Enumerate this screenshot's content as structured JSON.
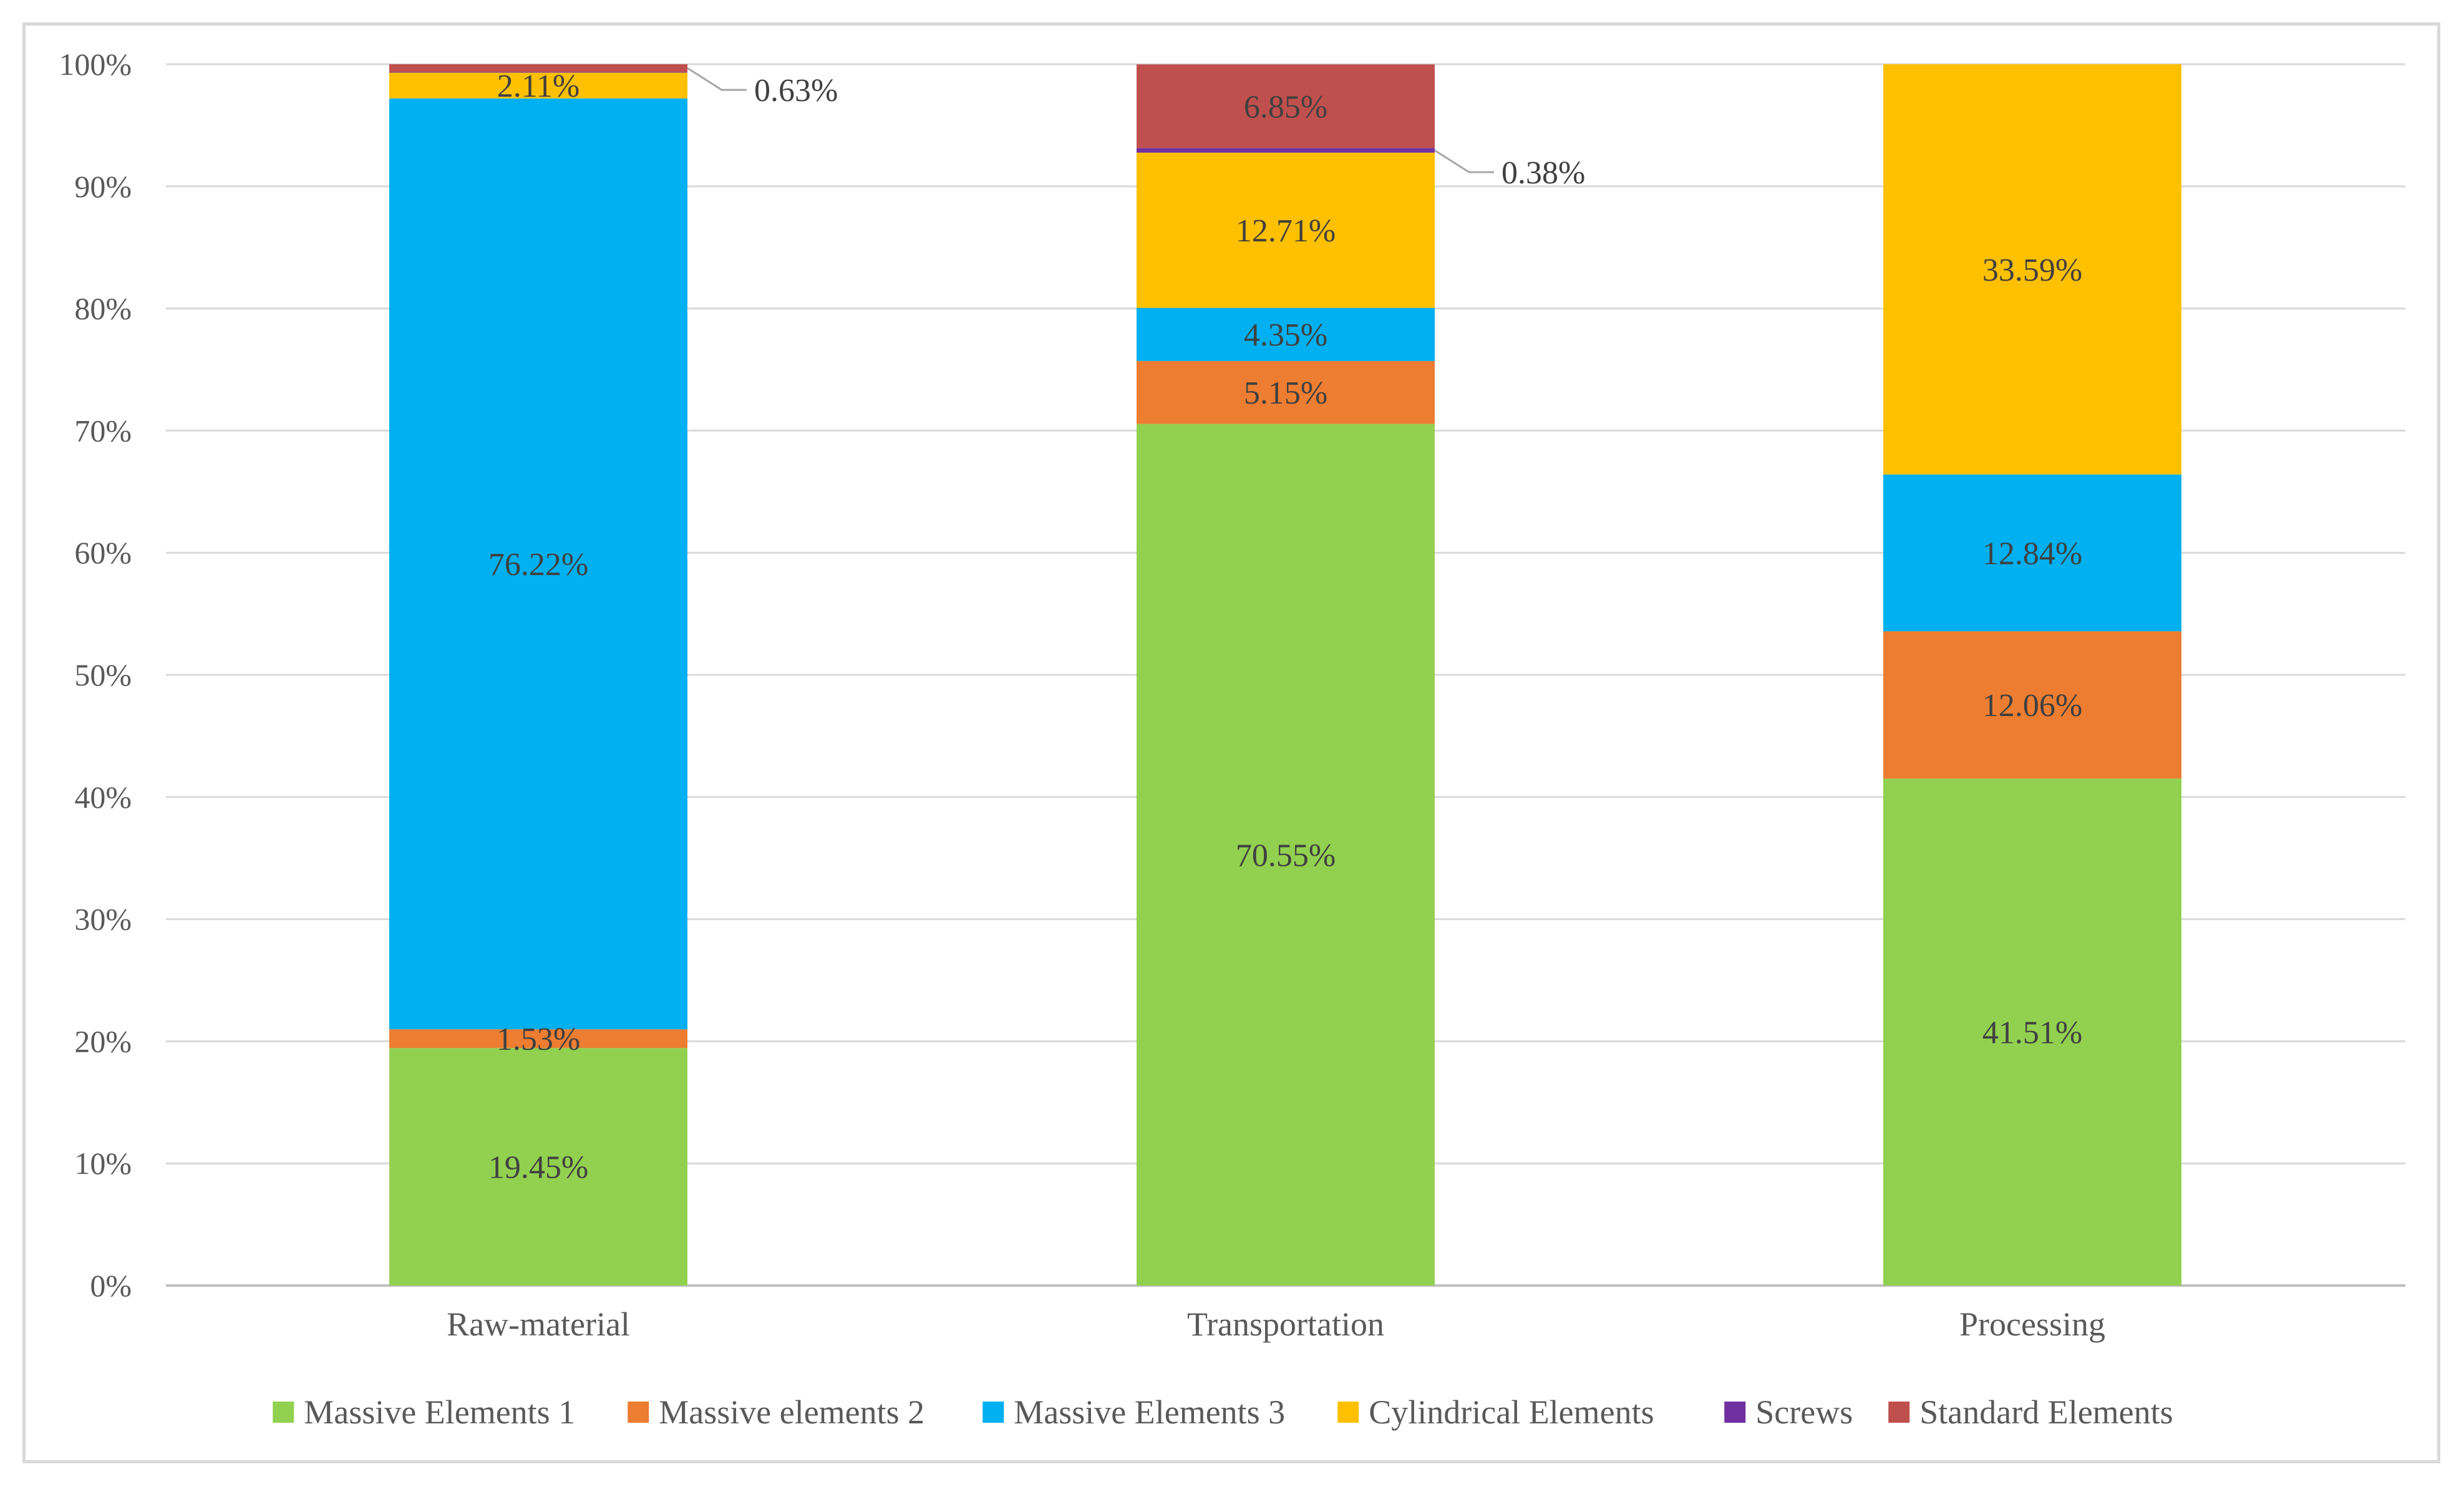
{
  "chart_data": {
    "type": "bar",
    "stacked": true,
    "percent": true,
    "title": "",
    "xlabel": "",
    "ylabel": "",
    "ylim": [
      0,
      100
    ],
    "yticks": [
      "0%",
      "10%",
      "20%",
      "30%",
      "40%",
      "50%",
      "60%",
      "70%",
      "80%",
      "90%",
      "100%"
    ],
    "categories": [
      "Raw-material",
      "Transportation",
      "Processing"
    ],
    "legend_position": "bottom",
    "series": [
      {
        "name": "Massive Elements 1",
        "color": "#92D050",
        "values": [
          19.45,
          70.55,
          41.51
        ],
        "labels": [
          "19.45%",
          "70.55%",
          "41.51%"
        ]
      },
      {
        "name": "Massive elements 2",
        "color": "#ED7D31",
        "values": [
          1.53,
          5.15,
          12.06
        ],
        "labels": [
          "1.53%",
          "5.15%",
          "12.06%"
        ]
      },
      {
        "name": "Massive Elements 3",
        "color": "#00B0F0",
        "values": [
          76.22,
          4.35,
          12.84
        ],
        "labels": [
          "76.22%",
          "4.35%",
          "12.84%"
        ]
      },
      {
        "name": "Cylindrical Elements",
        "color": "#FFC000",
        "values": [
          2.11,
          12.71,
          33.59
        ],
        "labels": [
          "2.11%",
          "12.71%",
          "33.59%"
        ]
      },
      {
        "name": "Screws",
        "color": "#7030A0",
        "values": [
          0.06,
          0.38,
          0
        ],
        "labels": [
          "",
          "0.38%",
          ""
        ]
      },
      {
        "name": "Standard Elements",
        "color": "#C0504D",
        "values": [
          0.63,
          6.85,
          0
        ],
        "labels": [
          "0.63%",
          "6.85%",
          ""
        ]
      }
    ]
  }
}
